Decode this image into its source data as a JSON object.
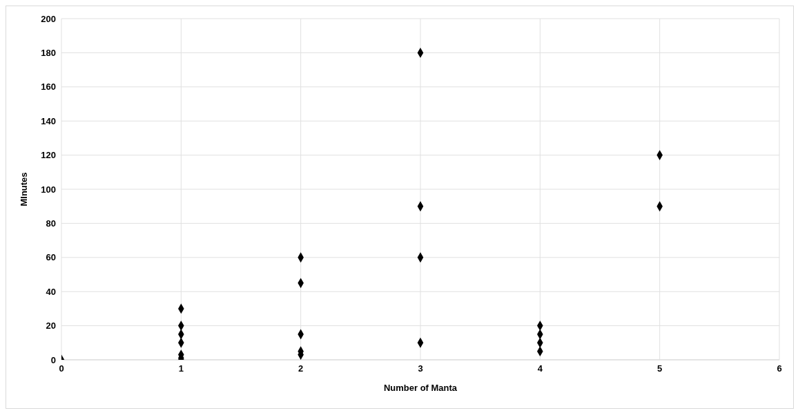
{
  "chart_data": {
    "type": "scatter",
    "xlabel": "Number of Manta",
    "ylabel": "MInutes",
    "x": [
      0,
      1,
      1,
      1,
      1,
      1,
      1,
      1,
      2,
      2,
      2,
      2,
      2,
      3,
      3,
      3,
      3,
      4,
      4,
      4,
      4,
      5,
      5
    ],
    "values": [
      0,
      30,
      20,
      15,
      10,
      3,
      1,
      0,
      60,
      45,
      15,
      5,
      3,
      180,
      90,
      60,
      10,
      20,
      15,
      10,
      5,
      120,
      90
    ],
    "color": "#000000",
    "marker": "diamond",
    "xlim": [
      0,
      6
    ],
    "xticks": [
      0,
      1,
      2,
      3,
      4,
      5,
      6
    ],
    "ylim": [
      0,
      200
    ],
    "yticks": [
      0,
      20,
      40,
      60,
      80,
      100,
      120,
      140,
      160,
      180,
      200
    ],
    "grid": true,
    "legend": false
  }
}
